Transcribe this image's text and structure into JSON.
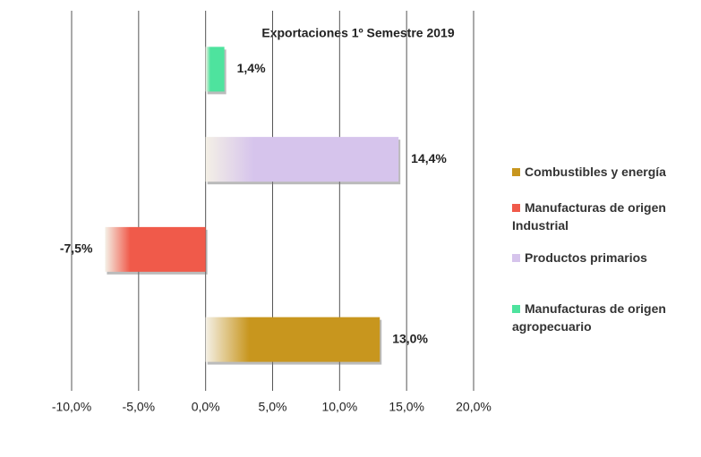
{
  "chart_data": {
    "type": "bar",
    "orientation": "horizontal",
    "title": "Exportaciones 1º Semestre 2019",
    "categories": [
      "Combustibles y energía",
      "Manufacturas de origen Industrial",
      "Productos primarios",
      "Manufacturas de origen agropecuario"
    ],
    "values": [
      13.0,
      -7.5,
      14.4,
      1.4
    ],
    "value_labels": [
      "13,0%",
      "-7,5%",
      "14,4%",
      "1,4%"
    ],
    "colors": [
      "#c8961e",
      "#f05a4a",
      "#d6c4ec",
      "#4ee39e"
    ],
    "xlim": [
      -10,
      20
    ],
    "xticks": [
      {
        "value": -10,
        "label": "-10,0%"
      },
      {
        "value": -5,
        "label": "-5,0%"
      },
      {
        "value": 0,
        "label": "0,0%"
      },
      {
        "value": 5,
        "label": "5,0%"
      },
      {
        "value": 10,
        "label": "10,0%"
      },
      {
        "value": 15,
        "label": "15,0%"
      },
      {
        "value": 20,
        "label": "20,0%"
      }
    ],
    "grid": true,
    "legend": "right"
  }
}
